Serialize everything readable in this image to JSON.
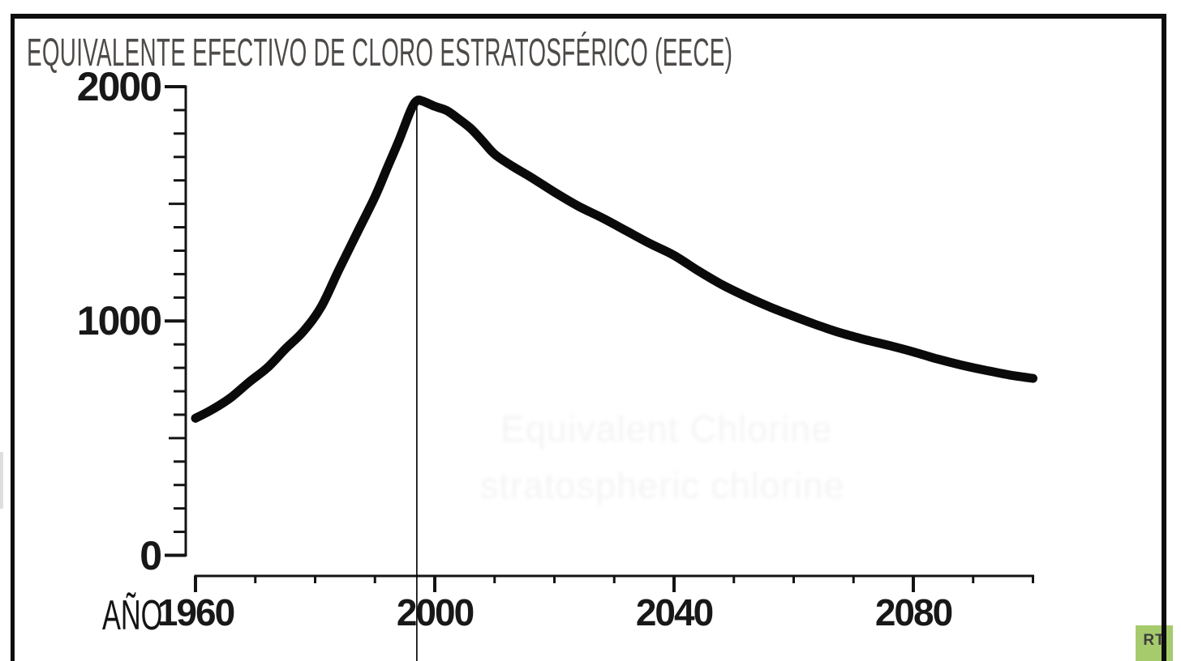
{
  "title": "EQUIVALENTE EFECTIVO DE CLORO ESTRATOSFÉRICO (EECE)",
  "axes": {
    "x_label": "AÑO",
    "x_tick_labels": [
      "1960",
      "2000",
      "2040",
      "2080"
    ],
    "y_tick_labels": [
      "0",
      "1000",
      "2000"
    ]
  },
  "ghost_text": {
    "line1": "Equivalent Chlorine",
    "line2": "stratospheric chlorine"
  },
  "logo": {
    "text": "RT",
    "bg_color": "#a6cb6c",
    "text_color": "#3d3d3d"
  },
  "colors": {
    "curve": "#0a0a0a",
    "axis": "#141414",
    "title_text": "#4e4a48",
    "frame": "#0d0d0d"
  },
  "chart_data": {
    "type": "line",
    "title": "EQUIVALENTE EFECTIVO DE CLORO ESTRATOSFÉRICO (EECE)",
    "xlabel": "AÑO",
    "ylabel": "",
    "x_range": [
      1960,
      2100
    ],
    "ylim": [
      0,
      2000
    ],
    "x_major_ticks": [
      1960,
      2000,
      2040,
      2080
    ],
    "x_minor_step": 10,
    "y_major_ticks": [
      0,
      1000,
      2000
    ],
    "y_minor_step": 100,
    "grid": false,
    "legend": false,
    "peak_marker_year": 1997,
    "series": [
      {
        "name": "EECE",
        "x": [
          1960,
          1963,
          1966,
          1969,
          1972,
          1975,
          1978,
          1981,
          1984,
          1987,
          1990,
          1992,
          1994,
          1996,
          1997,
          1998,
          2000,
          2002,
          2004,
          2006,
          2008,
          2010,
          2013,
          2016,
          2020,
          2024,
          2028,
          2032,
          2036,
          2040,
          2044,
          2048,
          2052,
          2056,
          2060,
          2064,
          2068,
          2072,
          2076,
          2080,
          2084,
          2088,
          2092,
          2096,
          2100
        ],
        "y": [
          585,
          625,
          675,
          740,
          800,
          880,
          955,
          1060,
          1220,
          1375,
          1530,
          1650,
          1770,
          1900,
          1940,
          1938,
          1916,
          1898,
          1862,
          1822,
          1768,
          1712,
          1660,
          1615,
          1550,
          1490,
          1440,
          1385,
          1330,
          1280,
          1215,
          1155,
          1105,
          1060,
          1020,
          982,
          948,
          920,
          895,
          868,
          838,
          812,
          790,
          770,
          755
        ]
      }
    ]
  }
}
